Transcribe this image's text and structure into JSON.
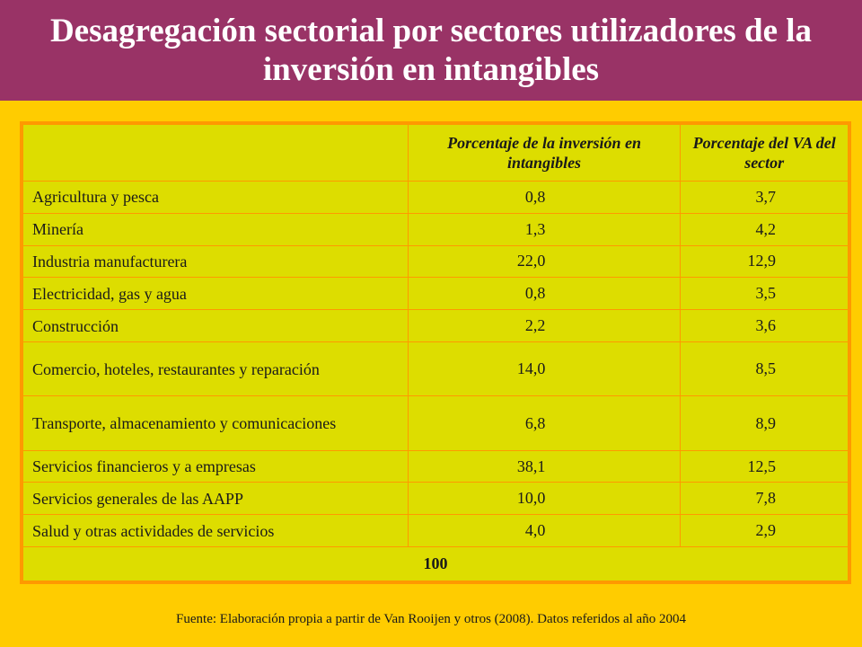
{
  "title": "Desagregación sectorial por sectores utilizadores de la inversión en intangibles",
  "table": {
    "headers": [
      "",
      "Porcentaje de la inversión en intangibles",
      "Porcentaje del VA del sector"
    ],
    "rows": [
      {
        "sector": "Agricultura y pesca",
        "intangibles": "0,8",
        "va": "3,7"
      },
      {
        "sector": "Minería",
        "intangibles": "1,3",
        "va": "4,2"
      },
      {
        "sector": "Industria manufacturera",
        "intangibles": "22,0",
        "va": "12,9"
      },
      {
        "sector": "Electricidad, gas y agua",
        "intangibles": "0,8",
        "va": "3,5"
      },
      {
        "sector": "Construcción",
        "intangibles": "2,2",
        "va": "3,6"
      },
      {
        "sector": "Comercio, hoteles, restaurantes y reparación",
        "intangibles": "14,0",
        "va": "8,5"
      },
      {
        "sector": "Transporte, almacenamiento y comunicaciones",
        "intangibles": "6,8",
        "va": "8,9"
      },
      {
        "sector": "Servicios financieros y a empresas",
        "intangibles": "38,1",
        "va": "12,5"
      },
      {
        "sector": "Servicios generales de las AAPP",
        "intangibles": "10,0",
        "va": "7,8"
      },
      {
        "sector": "Salud y otras actividades de servicios",
        "intangibles": "4,0",
        "va": "2,9"
      }
    ],
    "total": "100"
  },
  "source": "Fuente: Elaboración propia a partir de Van Rooijen y otros (2008). Datos referidos al año 2004"
}
